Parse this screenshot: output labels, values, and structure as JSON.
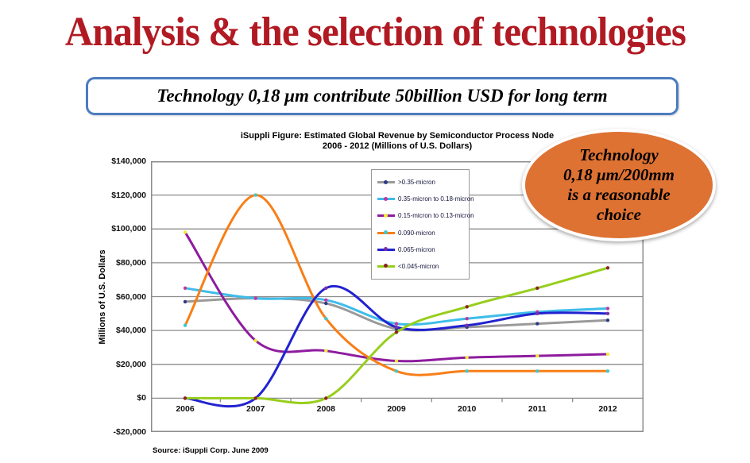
{
  "slide": {
    "title": "Analysis & the selection of technologies",
    "banner_text": "Technology 0,18 μm contribute 50billion USD for long term",
    "callout_text": "Technology\n0,18 μm/200mm\nis a reasonable\nchoice",
    "source_note": "Source: iSuppli Corp. June 2009"
  },
  "colors": {
    "title": "#B11A23",
    "banner_border": "#4C7CC0",
    "callout_fill": "#DE7233",
    "grid": "#8C8C8C",
    "axis_text": "#111111"
  },
  "chart_data": {
    "type": "line",
    "title_line1": "iSuppli Figure: Estimated Global Revenue by Semiconductor Process Node",
    "title_line2": "2006 - 2012 (Millions of U.S. Dollars)",
    "ylabel": "Millions of U.S. Dollars",
    "xlabel": "",
    "x": [
      2006,
      2007,
      2008,
      2009,
      2010,
      2011,
      2012
    ],
    "ylim": [
      -20000,
      140000
    ],
    "ytick_step": 20000,
    "ytick_labels": [
      "$140,000",
      "$120,000",
      "$100,000",
      "$80,000",
      "$60,000",
      "$40,000",
      "$20,000",
      "$0",
      "-$20,000"
    ],
    "grid": true,
    "line_style": "smoothed",
    "legend_position": "inside upper-center",
    "series": [
      {
        "name": ">0.35-micron",
        "color": "#9A9A9A",
        "marker": "#2B3A87",
        "values": [
          57000,
          59000,
          56000,
          41000,
          42000,
          44000,
          46000
        ]
      },
      {
        "name": "0.35-micron to 0.18-micron",
        "color": "#3FBCE9",
        "marker": "#C13AA2",
        "values": [
          65000,
          59000,
          58000,
          44000,
          47000,
          51000,
          53000
        ]
      },
      {
        "name": "0.15-micron to 0.13-micron",
        "color": "#8E1C9E",
        "marker": "#EFE93B",
        "values": [
          98000,
          34000,
          28000,
          22000,
          24000,
          25000,
          26000
        ]
      },
      {
        "name": "0.090-micron",
        "color": "#F87E17",
        "marker": "#3FC8CD",
        "values": [
          43000,
          120000,
          47000,
          16000,
          16000,
          16000,
          16000
        ]
      },
      {
        "name": "0.065-micron",
        "color": "#2222D0",
        "marker": "#7A2FA8",
        "values": [
          0,
          0,
          65000,
          42000,
          43000,
          50000,
          50000
        ]
      },
      {
        "name": "<0.045-micron",
        "color": "#97CE1C",
        "marker": "#8E2323",
        "values": [
          0,
          0,
          0,
          39000,
          54000,
          65000,
          77000
        ]
      }
    ]
  }
}
